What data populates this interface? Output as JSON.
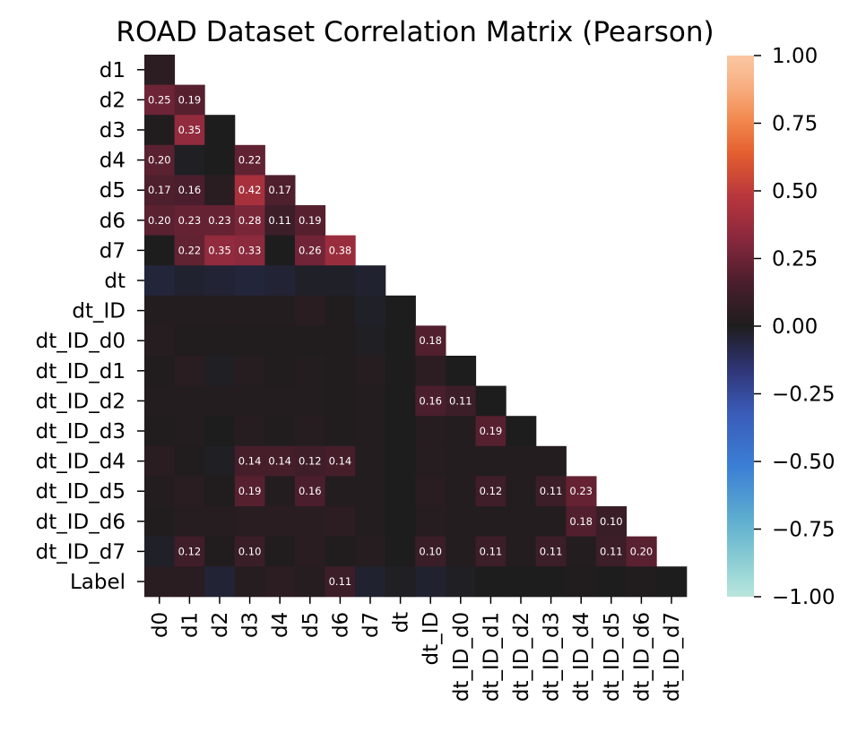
{
  "chart_data": {
    "type": "heatmap",
    "title": "ROAD Dataset Correlation Matrix (Pearson)",
    "subtitle": "",
    "xlabel": "",
    "ylabel": "",
    "mask": "upper-triangle including diagonal (row 0 'd0' not shown)",
    "colormap": "icefire",
    "colorbar": {
      "vmin": -1.0,
      "vmax": 1.0,
      "tick_labels": [
        "1.00",
        "0.75",
        "0.50",
        "0.25",
        "0.00",
        "−0.25",
        "−0.50",
        "−0.75",
        "−1.00"
      ],
      "ticks": [
        1.0,
        0.75,
        0.5,
        0.25,
        0.0,
        -0.25,
        -0.5,
        -0.75,
        -1.0
      ]
    },
    "annotation_threshold": 0.1,
    "x_labels": [
      "d0",
      "d1",
      "d2",
      "d3",
      "d4",
      "d5",
      "d6",
      "d7",
      "dt",
      "dt_ID",
      "dt_ID_d0",
      "dt_ID_d1",
      "dt_ID_d2",
      "dt_ID_d3",
      "dt_ID_d4",
      "dt_ID_d5",
      "dt_ID_d6",
      "dt_ID_d7"
    ],
    "y_labels": [
      "d1",
      "d2",
      "d3",
      "d4",
      "d5",
      "d6",
      "d7",
      "dt",
      "dt_ID",
      "dt_ID_d0",
      "dt_ID_d1",
      "dt_ID_d2",
      "dt_ID_d3",
      "dt_ID_d4",
      "dt_ID_d5",
      "dt_ID_d6",
      "dt_ID_d7",
      "Label"
    ],
    "rows": [
      {
        "label": "d1",
        "values": [
          0.05
        ]
      },
      {
        "label": "d2",
        "values": [
          0.25,
          0.19
        ]
      },
      {
        "label": "d3",
        "values": [
          0.01,
          0.35,
          0.0
        ]
      },
      {
        "label": "d4",
        "values": [
          0.2,
          -0.01,
          0.0,
          0.22
        ]
      },
      {
        "label": "d5",
        "values": [
          0.17,
          0.16,
          0.04,
          0.42,
          0.17
        ]
      },
      {
        "label": "d6",
        "values": [
          0.2,
          0.23,
          0.23,
          0.28,
          0.11,
          0.19
        ]
      },
      {
        "label": "d7",
        "values": [
          0.0,
          0.22,
          0.35,
          0.33,
          0.0,
          0.26,
          0.38
        ]
      },
      {
        "label": "dt",
        "values": [
          -0.05,
          -0.03,
          -0.04,
          -0.05,
          -0.04,
          -0.02,
          -0.02,
          -0.03
        ]
      },
      {
        "label": "dt_ID",
        "values": [
          0.02,
          0.02,
          0.02,
          0.02,
          0.02,
          0.04,
          0.01,
          -0.02,
          0.0
        ]
      },
      {
        "label": "dt_ID_d0",
        "values": [
          0.03,
          0.01,
          0.01,
          0.01,
          0.01,
          0.01,
          0.01,
          -0.01,
          0.0,
          0.18
        ]
      },
      {
        "label": "dt_ID_d1",
        "values": [
          0.01,
          0.04,
          -0.01,
          0.03,
          0.01,
          0.02,
          0.01,
          0.03,
          0.0,
          0.05,
          0.0
        ]
      },
      {
        "label": "dt_ID_d2",
        "values": [
          0.02,
          0.02,
          0.02,
          0.02,
          0.02,
          0.02,
          0.01,
          0.02,
          0.0,
          0.16,
          0.11,
          0.0
        ]
      },
      {
        "label": "dt_ID_d3",
        "values": [
          0.01,
          0.02,
          0.0,
          0.03,
          0.01,
          0.03,
          0.01,
          0.02,
          0.0,
          0.03,
          0.02,
          0.19,
          0.0
        ]
      },
      {
        "label": "dt_ID_d4",
        "values": [
          0.04,
          0.01,
          -0.01,
          0.14,
          0.14,
          0.12,
          0.14,
          0.02,
          0.0,
          0.03,
          0.02,
          0.02,
          0.02,
          0.02
        ]
      },
      {
        "label": "dt_ID_d5",
        "values": [
          0.02,
          0.04,
          0.01,
          0.19,
          0.02,
          0.16,
          0.02,
          0.02,
          0.0,
          0.04,
          0.02,
          0.12,
          0.02,
          0.11,
          0.23
        ]
      },
      {
        "label": "dt_ID_d6",
        "values": [
          0.01,
          0.03,
          0.03,
          0.04,
          0.04,
          0.04,
          0.05,
          0.02,
          0.0,
          0.03,
          0.02,
          0.02,
          0.02,
          0.02,
          0.18,
          0.1
        ]
      },
      {
        "label": "dt_ID_d7",
        "values": [
          -0.02,
          0.12,
          0.01,
          0.1,
          0.01,
          0.04,
          0.01,
          0.03,
          0.0,
          0.1,
          0.02,
          0.11,
          0.02,
          0.11,
          0.02,
          0.11,
          0.2
        ]
      },
      {
        "label": "Label",
        "values": [
          0.04,
          0.04,
          -0.04,
          0.03,
          0.05,
          0.03,
          0.11,
          -0.03,
          -0.01,
          -0.03,
          -0.01,
          0.0,
          0.0,
          0.0,
          0.01,
          0.0,
          0.01,
          0.0
        ]
      }
    ]
  }
}
